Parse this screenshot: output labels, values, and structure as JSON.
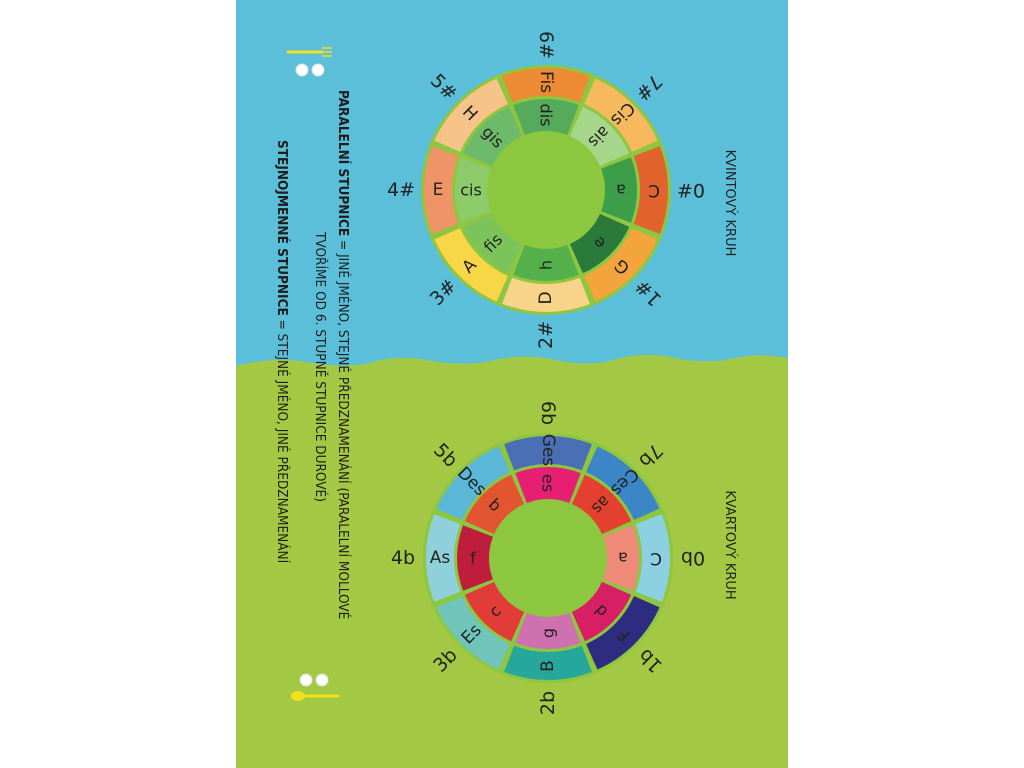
{
  "colors": {
    "sky": "#5bbfd9",
    "grass": "#a3c843",
    "ring_gap": "#8dc63f",
    "text": "#1d1d1b"
  },
  "kvintovy": {
    "title": "KVINTOVÝ KRUH",
    "outer": [
      {
        "label": "C",
        "color": "#e2622e"
      },
      {
        "label": "G",
        "color": "#f3a43c"
      },
      {
        "label": "D",
        "color": "#f8d38a"
      },
      {
        "label": "A",
        "color": "#f9d648"
      },
      {
        "label": "E",
        "color": "#ee9466"
      },
      {
        "label": "H",
        "color": "#f6c489"
      },
      {
        "label": "Fis",
        "color": "#ec8b33"
      },
      {
        "label": "Cis",
        "color": "#f6b95e"
      }
    ],
    "inner": [
      {
        "label": "a",
        "color": "#3d9e4a"
      },
      {
        "label": "e",
        "color": "#2a7b3b"
      },
      {
        "label": "h",
        "color": "#54b04a"
      },
      {
        "label": "fis",
        "color": "#7cc35a"
      },
      {
        "label": "cis",
        "color": "#8dcb6a"
      },
      {
        "label": "gis",
        "color": "#6dbb6a"
      },
      {
        "label": "dis",
        "color": "#55aa5b"
      },
      {
        "label": "ais",
        "color": "#a6d68a"
      }
    ],
    "numbers": [
      "0#",
      "1#",
      "2#",
      "3#",
      "4#",
      "5#",
      "6#",
      "7#"
    ]
  },
  "kvartovy": {
    "title": "KVARTOVÝ KRUH",
    "outer": [
      {
        "label": "C",
        "color": "#8dd0e2"
      },
      {
        "label": "F",
        "color": "#2e2c80"
      },
      {
        "label": "B",
        "color": "#27a79c"
      },
      {
        "label": "Es",
        "color": "#6fc5b9"
      },
      {
        "label": "As",
        "color": "#8fd0da"
      },
      {
        "label": "Des",
        "color": "#5ab7d8"
      },
      {
        "label": "Ges",
        "color": "#4a6fb5"
      },
      {
        "label": "Ces",
        "color": "#3c85c6"
      }
    ],
    "inner": [
      {
        "label": "a",
        "color": "#f08a78"
      },
      {
        "label": "d",
        "color": "#d81f63"
      },
      {
        "label": "g",
        "color": "#cf70b0"
      },
      {
        "label": "c",
        "color": "#e13c37"
      },
      {
        "label": "f",
        "color": "#be1e3c"
      },
      {
        "label": "b",
        "color": "#e35430"
      },
      {
        "label": "es",
        "color": "#e71f73"
      },
      {
        "label": "as",
        "color": "#e4402f"
      }
    ],
    "numbers": [
      "0b",
      "1b",
      "2b",
      "3b",
      "4b",
      "5b",
      "6b",
      "7b"
    ]
  },
  "text": {
    "paralelni_title": "PARALELNÍ STUPNICE",
    "paralelni_rest": " = JINÉ JMÉNO, STEJNÉ PŘEDZNAMENÁNÍ (PARALELNÍ MOLLOVÉ",
    "paralelni_line2": "TVOŘÍME OD 6. STUPNĚ STUPNICE DUROVÉ)",
    "stejnojmenne_title": "STEJNOJMENNÉ STUPNICE",
    "stejnojmenne_rest": " = STEJNÉ JMÉNO, JINÉ PŘEDZNAMENÁNÍ"
  }
}
